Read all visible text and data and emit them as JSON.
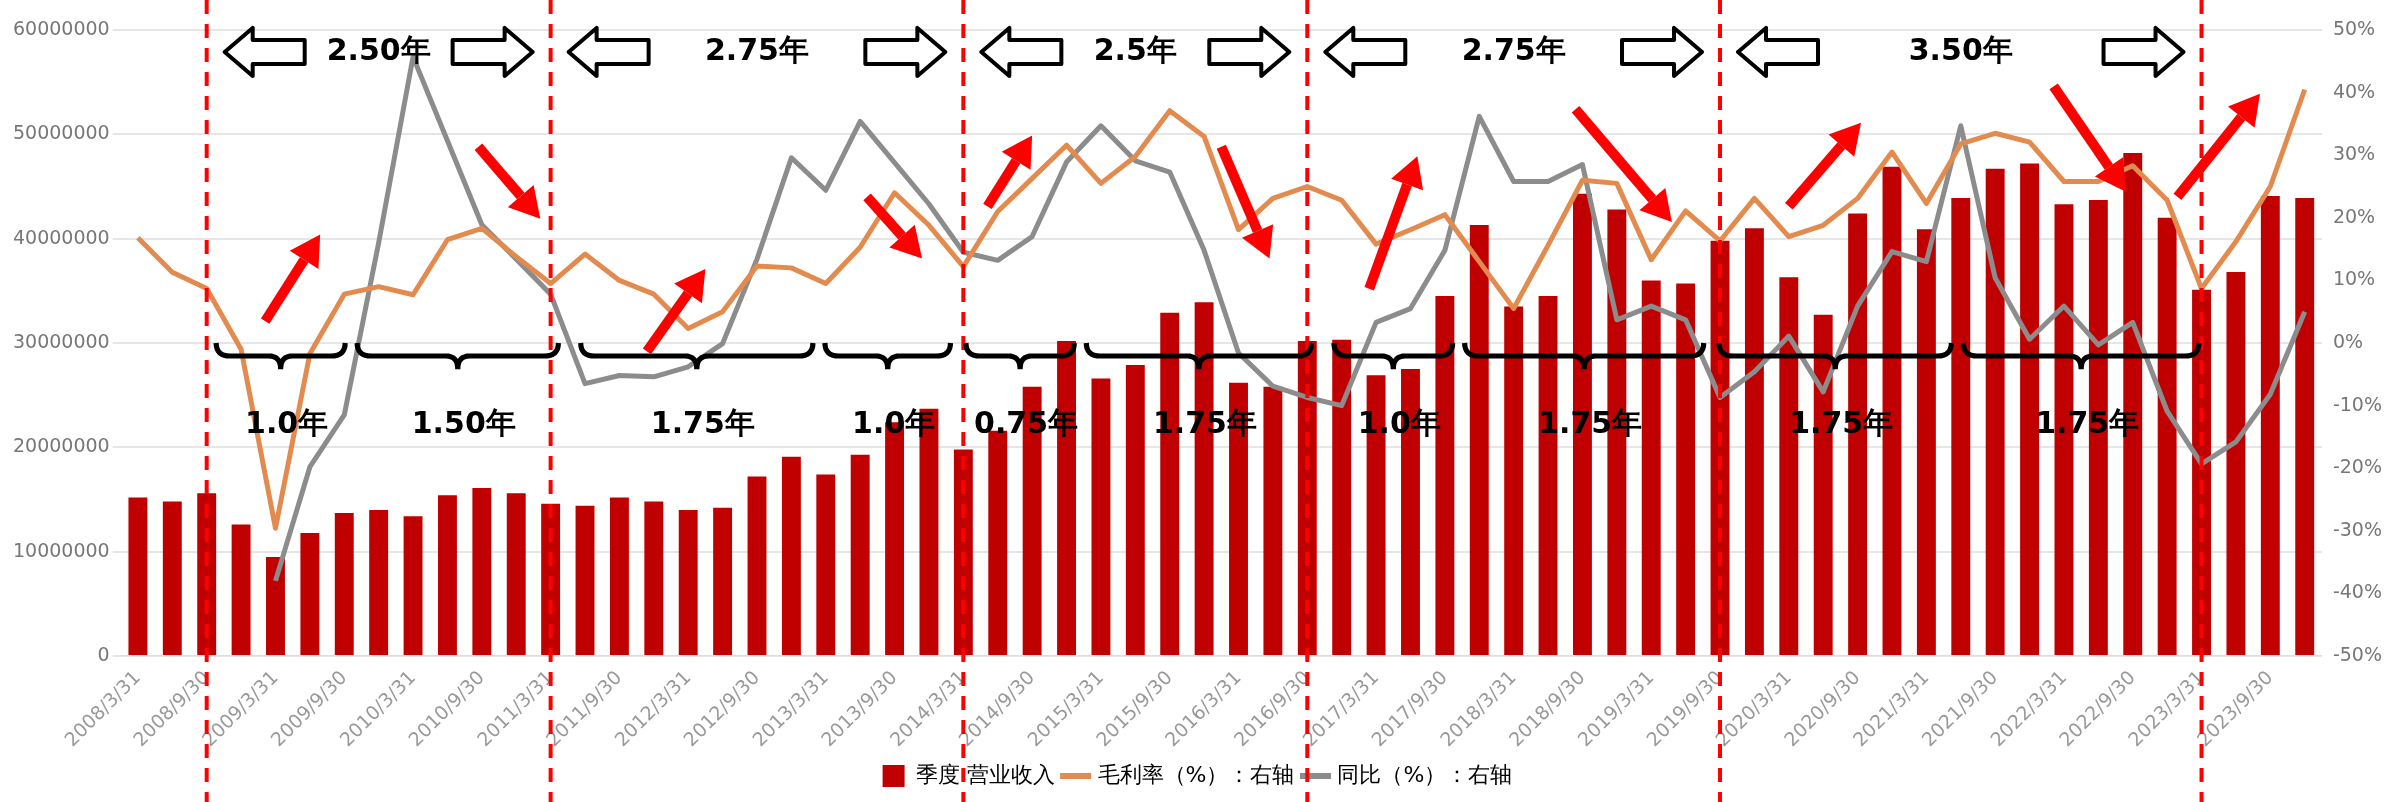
{
  "chart_data": {
    "type": "bar",
    "categories": [
      "2008/3/31",
      null,
      "2008/9/30",
      null,
      "2009/3/31",
      null,
      "2009/9/30",
      null,
      "2010/3/31",
      null,
      "2010/9/30",
      null,
      "2011/3/31",
      null,
      "2011/9/30",
      null,
      "2012/3/31",
      null,
      "2012/9/30",
      null,
      "2013/3/31",
      null,
      "2013/9/30",
      null,
      "2014/3/31",
      null,
      "2014/9/30",
      null,
      "2015/3/31",
      null,
      "2015/9/30",
      null,
      "2016/3/31",
      null,
      "2016/9/30",
      null,
      "2017/3/31",
      null,
      "2017/9/30",
      null,
      "2018/3/31",
      null,
      "2018/9/30",
      null,
      "2019/3/31",
      null,
      "2019/9/30",
      null,
      "2020/3/31",
      null,
      "2020/9/30",
      null,
      "2021/3/31",
      null,
      "2021/9/30",
      null,
      "2022/3/31",
      null,
      "2022/9/30",
      null,
      "2023/3/31",
      null,
      "2023/9/30",
      null
    ],
    "series": [
      {
        "name": "季度 营业收入",
        "color": "#c00000",
        "values": [
          15200000,
          14800000,
          15600000,
          12600000,
          9500000,
          11800000,
          13700000,
          14000000,
          13400000,
          15400000,
          16100000,
          15600000,
          14600000,
          14400000,
          15200000,
          14800000,
          14000000,
          14200000,
          17200000,
          19100000,
          17400000,
          19300000,
          22400000,
          23700000,
          19800000,
          21600000,
          25800000,
          30200000,
          26600000,
          27900000,
          32900000,
          33900000,
          26200000,
          25800000,
          30200000,
          30300000,
          26900000,
          27500000,
          34500000,
          41300000,
          33500000,
          34500000,
          44300000,
          42800000,
          36000000,
          35700000,
          39800000,
          41000000,
          36300000,
          32700000,
          42400000,
          46900000,
          40900000,
          43900000,
          46700000,
          47200000,
          43300000,
          43700000,
          48200000,
          42000000,
          35100000,
          36800000,
          44100000,
          43900000
        ]
      },
      {
        "name": "毛利率（%）：右轴",
        "type": "line",
        "axis": "y2",
        "color": "#e38b4f",
        "values": [
          16.8,
          11.3,
          8.7,
          -1.0,
          -29.6,
          -1.7,
          7.8,
          9.0,
          7.7,
          16.5,
          18.3,
          13.8,
          9.5,
          14.2,
          10.0,
          7.8,
          2.3,
          5.0,
          12.3,
          12.0,
          9.5,
          15.3,
          24.0,
          18.8,
          12.2,
          21.0,
          26.3,
          31.6,
          25.5,
          29.8,
          37.1,
          33.0,
          18.1,
          23.1,
          25.0,
          22.8,
          15.8,
          18.1,
          20.5,
          13.0,
          5.5,
          15.6,
          26.0,
          25.5,
          13.3,
          21.1,
          16.3,
          23.1,
          17.0,
          18.8,
          23.1,
          30.5,
          22.3,
          31.8,
          33.5,
          32.1,
          25.8,
          25.8,
          28.3,
          22.8,
          8.7,
          16.2,
          25.0,
          40.5
        ]
      },
      {
        "name": "同比（%）：右轴",
        "type": "line",
        "axis": "y2",
        "color": "#8c8c8c",
        "values": [
          null,
          null,
          null,
          null,
          -38.0,
          -19.8,
          -11.5,
          16,
          45.7,
          32.3,
          18.9,
          13.4,
          7.8,
          -6.5,
          -5.2,
          -5.4,
          -3.8,
          -0.1,
          13.4,
          29.6,
          24.4,
          35.4,
          28.8,
          22.2,
          14.5,
          13.2,
          17.0,
          28.9,
          34.7,
          29.1,
          27.3,
          14.8,
          -1.6,
          -6.9,
          -8.7,
          -10.0,
          3.3,
          5.5,
          14.8,
          36.2,
          25.8,
          25.8,
          28.5,
          3.7,
          5.9,
          3.7,
          -8.7,
          -4.6,
          1.1,
          -7.8,
          5.9,
          14.6,
          13.0,
          34.7,
          10.4,
          0.6,
          5.9,
          -0.3,
          3.3,
          -10.9,
          -19.3,
          -15.8,
          -8.2,
          5.0
        ]
      }
    ],
    "ylim": [
      0,
      60000000
    ],
    "yticks": [
      0,
      10000000,
      20000000,
      30000000,
      40000000,
      50000000,
      60000000
    ],
    "y2lim": [
      -50,
      50
    ],
    "y2ticks": [
      {
        "value": -50,
        "label": "-50%"
      },
      {
        "value": -40,
        "label": "-40%"
      },
      {
        "value": -30,
        "label": "-30%"
      },
      {
        "value": -20,
        "label": "-20%"
      },
      {
        "value": -10,
        "label": "-10%"
      },
      {
        "value": 0,
        "label": "0%"
      },
      {
        "value": 10,
        "label": "10%"
      },
      {
        "value": 20,
        "label": "20%"
      },
      {
        "value": 30,
        "label": "30%"
      },
      {
        "value": 40,
        "label": "40%"
      },
      {
        "value": 50,
        "label": "50%"
      }
    ],
    "ref_lines": [
      {
        "axis": "x",
        "value": "2008/9/30",
        "color": "#ff0000",
        "line_style": "dashed"
      },
      {
        "axis": "x",
        "value": "2011/3/31",
        "color": "#ff0000",
        "line_style": "dashed"
      },
      {
        "axis": "x",
        "value": "2014/3/31",
        "color": "#ff0000",
        "line_style": "dashed"
      },
      {
        "axis": "x",
        "value": "2016/9/30",
        "color": "#ff0000",
        "line_style": "dashed"
      },
      {
        "axis": "x",
        "value": "2019/9/30",
        "color": "#ff0000",
        "line_style": "dashed"
      },
      {
        "axis": "x",
        "value": "2023/3/31",
        "color": "#ff0000",
        "line_style": "dashed"
      }
    ],
    "annotations": [
      "2.50年",
      "2.75年",
      "2.5年",
      "2.75年",
      "3.50年",
      "1.0年",
      "1.50年",
      "1.75年",
      "1.0年",
      "0.75年",
      "1.75年",
      "1.0年",
      "1.75年",
      "1.75年",
      "1.75年"
    ],
    "grid": "y",
    "legend": "bottom",
    "marker": "none",
    "line_style": "solid"
  }
}
